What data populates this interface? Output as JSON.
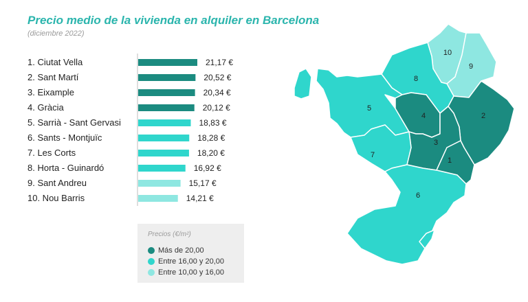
{
  "title": "Precio medio de la vivienda en alquiler en Barcelona",
  "subtitle": "(diciembre 2022)",
  "colors": {
    "high": "#1b8b80",
    "mid": "#2fd6cc",
    "low": "#8ee7e1"
  },
  "chart_data": {
    "type": "bar",
    "orientation": "horizontal",
    "categories": [
      "1. Ciutat Vella",
      "2. Sant Martí",
      "3. Eixample",
      "4. Gràcia",
      "5. Sarrià - Sant Gervasi",
      "6. Sants - Montjuïc",
      "7. Les Corts",
      "8. Horta - Guinardó",
      "9. Sant Andreu",
      "10. Nou Barris"
    ],
    "values": [
      21.17,
      20.52,
      20.34,
      20.12,
      18.83,
      18.28,
      18.2,
      16.92,
      15.17,
      14.21
    ],
    "value_labels": [
      "21,17 €",
      "20,52 €",
      "20,34 €",
      "20,12 €",
      "18,83 €",
      "18,28 €",
      "18,20 €",
      "16,92 €",
      "15,17 €",
      "14,21 €"
    ],
    "tiers": [
      "high",
      "high",
      "high",
      "high",
      "mid",
      "mid",
      "mid",
      "mid",
      "low",
      "low"
    ],
    "xlim": [
      0,
      22
    ]
  },
  "legend": {
    "title": "Precios (€/m²)",
    "items": [
      {
        "label": "Más de 20,00",
        "color": "#1b8b80"
      },
      {
        "label": "Entre 16,00 y 20,00",
        "color": "#2fd6cc"
      },
      {
        "label": "Entre 10,00 y 16,00",
        "color": "#8ee7e1"
      }
    ]
  },
  "map": {
    "districts": [
      {
        "number": "1",
        "tier": "high"
      },
      {
        "number": "2",
        "tier": "high"
      },
      {
        "number": "3",
        "tier": "high"
      },
      {
        "number": "4",
        "tier": "high"
      },
      {
        "number": "5",
        "tier": "mid"
      },
      {
        "number": "6",
        "tier": "mid"
      },
      {
        "number": "7",
        "tier": "mid"
      },
      {
        "number": "8",
        "tier": "mid"
      },
      {
        "number": "9",
        "tier": "low"
      },
      {
        "number": "10",
        "tier": "low"
      }
    ]
  }
}
